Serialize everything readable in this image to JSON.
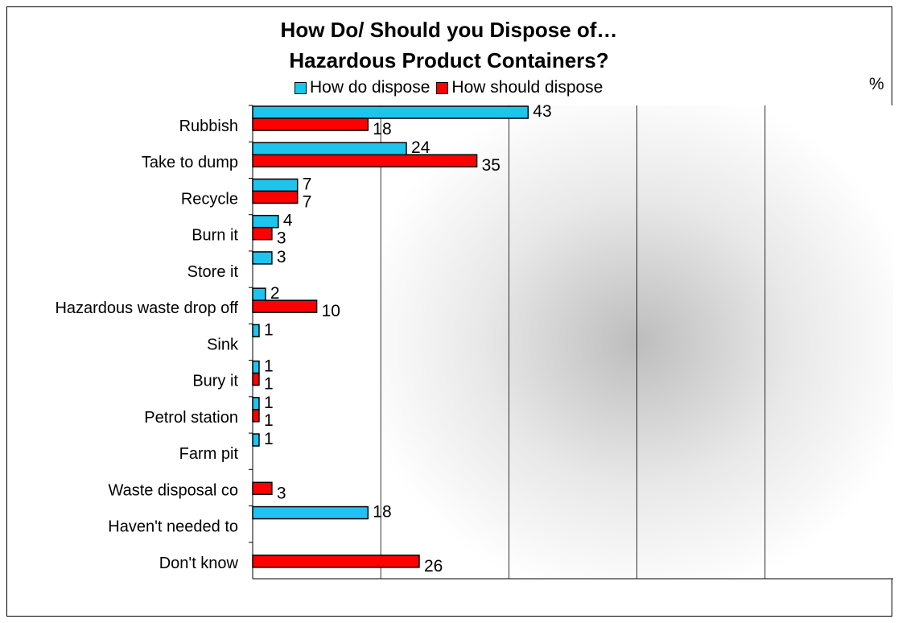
{
  "colors": {
    "series0": "#1ec4ee",
    "series1": "#ff0000"
  },
  "chart_data": {
    "type": "bar",
    "orientation": "horizontal",
    "title": [
      "How Do/ Should you Dispose of…",
      "Hazardous Product Containers?"
    ],
    "unit_label": "%",
    "categories": [
      "Rubbish",
      "Take to dump",
      "Recycle",
      "Burn it",
      "Store it",
      "Hazardous waste drop off",
      "Sink",
      "Bury it",
      "Petrol station",
      "Farm pit",
      "Waste disposal co",
      "Haven't needed to",
      "Don't know"
    ],
    "series": [
      {
        "name": "How do dispose",
        "values": [
          43,
          24,
          7,
          4,
          3,
          2,
          1,
          1,
          1,
          1,
          null,
          18,
          null
        ]
      },
      {
        "name": "How should dispose",
        "values": [
          18,
          35,
          7,
          3,
          null,
          10,
          null,
          1,
          1,
          null,
          3,
          null,
          26
        ]
      }
    ],
    "xlim": [
      0,
      100
    ],
    "grid": true,
    "legend": "top"
  }
}
